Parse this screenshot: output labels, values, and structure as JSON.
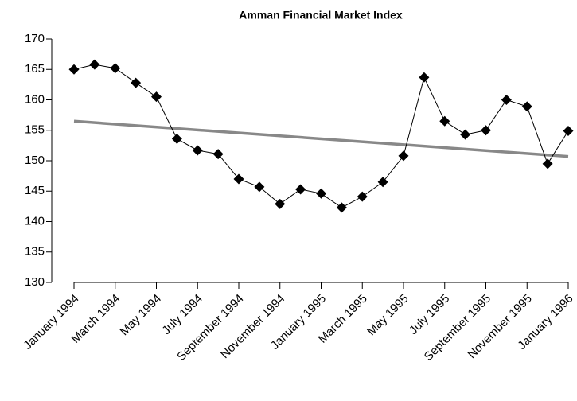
{
  "chart_data": {
    "type": "line",
    "title": "Amman Financial Market Index",
    "categories": [
      "January 1994",
      null,
      "March 1994",
      null,
      "May 1994",
      null,
      "July 1994",
      null,
      "September 1994",
      null,
      "November 1994",
      null,
      "January 1995",
      null,
      "March 1995",
      null,
      "May 1995",
      null,
      "July 1995",
      null,
      "September 1995",
      null,
      "November 1995",
      null,
      "January 1996"
    ],
    "series": [
      {
        "color": "#000000",
        "values": [
          165,
          165.8,
          165.2,
          162.8,
          160.5,
          153.6,
          151.7,
          151.1,
          147,
          145.7,
          142.9,
          145.3,
          144.6,
          142.3,
          144.1,
          146.5,
          150.8,
          163.7,
          156.5,
          154.3,
          155,
          160,
          158.9,
          149.5,
          154.9
        ]
      }
    ],
    "trendline": {
      "start": 156.5,
      "end": 150.7,
      "color": "#888888"
    },
    "ylim": [
      130,
      170
    ],
    "yticks": [
      130,
      135,
      140,
      145,
      150,
      155,
      160,
      165,
      170
    ]
  }
}
